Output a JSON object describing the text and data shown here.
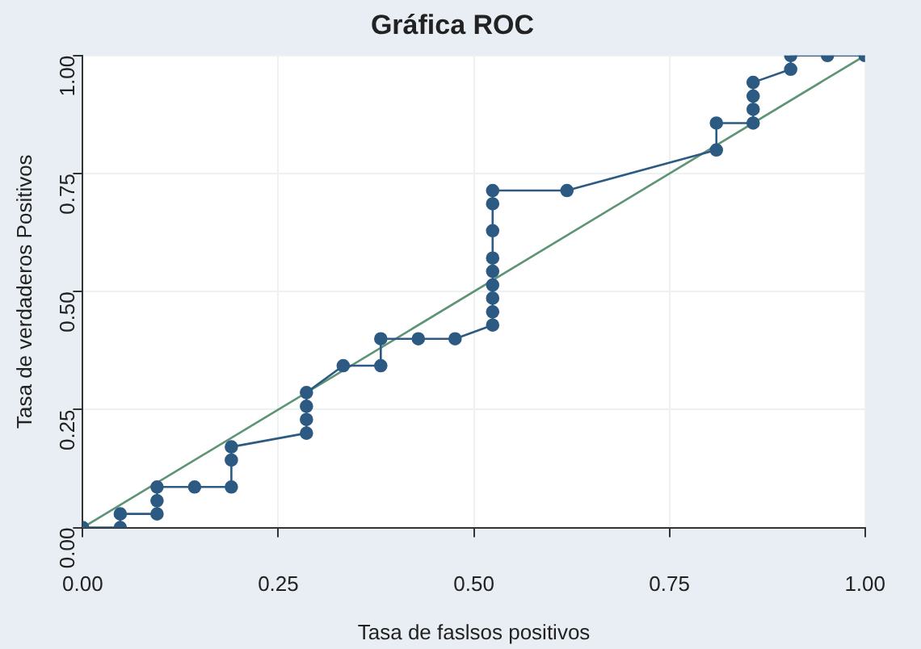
{
  "chart_data": {
    "type": "line",
    "title": "Gráfica ROC",
    "xlabel": "Tasa de faslsos positivos",
    "ylabel": "Tasa de verdaderos Positivos",
    "xlim": [
      0,
      1
    ],
    "ylim": [
      0,
      1
    ],
    "xticks": [
      {
        "value": 0,
        "label": "0.00"
      },
      {
        "value": 0.25,
        "label": "0.25"
      },
      {
        "value": 0.5,
        "label": "0.50"
      },
      {
        "value": 0.75,
        "label": "0.75"
      },
      {
        "value": 1,
        "label": "1.00"
      }
    ],
    "yticks": [
      {
        "value": 0,
        "label": "0.00"
      },
      {
        "value": 0.25,
        "label": "0.25"
      },
      {
        "value": 0.5,
        "label": "0.50"
      },
      {
        "value": 0.75,
        "label": "0.75"
      },
      {
        "value": 1,
        "label": "1.00"
      }
    ],
    "grid": true,
    "legend": false,
    "marker": "circle",
    "series": [
      {
        "color": "#2c5a82",
        "x": [
          0,
          0.048,
          0.048,
          0.095,
          0.095,
          0.095,
          0.143,
          0.19,
          0.19,
          0.19,
          0.286,
          0.286,
          0.286,
          0.286,
          0.333,
          0.381,
          0.381,
          0.429,
          0.476,
          0.524,
          0.524,
          0.524,
          0.524,
          0.524,
          0.524,
          0.524,
          0.524,
          0.524,
          0.619,
          0.81,
          0.81,
          0.857,
          0.857,
          0.857,
          0.857,
          0.905,
          0.905,
          0.952,
          1
        ],
        "values": [
          0,
          0,
          0.029,
          0.029,
          0.057,
          0.086,
          0.086,
          0.086,
          0.143,
          0.171,
          0.2,
          0.229,
          0.257,
          0.286,
          0.343,
          0.343,
          0.4,
          0.4,
          0.4,
          0.429,
          0.457,
          0.486,
          0.514,
          0.543,
          0.571,
          0.629,
          0.686,
          0.714,
          0.714,
          0.8,
          0.857,
          0.857,
          0.886,
          0.914,
          0.943,
          0.971,
          1,
          1,
          1
        ]
      },
      {
        "color": "#5e9475",
        "marker": "none",
        "x": [
          0,
          1
        ],
        "values": [
          0,
          1
        ]
      }
    ]
  }
}
